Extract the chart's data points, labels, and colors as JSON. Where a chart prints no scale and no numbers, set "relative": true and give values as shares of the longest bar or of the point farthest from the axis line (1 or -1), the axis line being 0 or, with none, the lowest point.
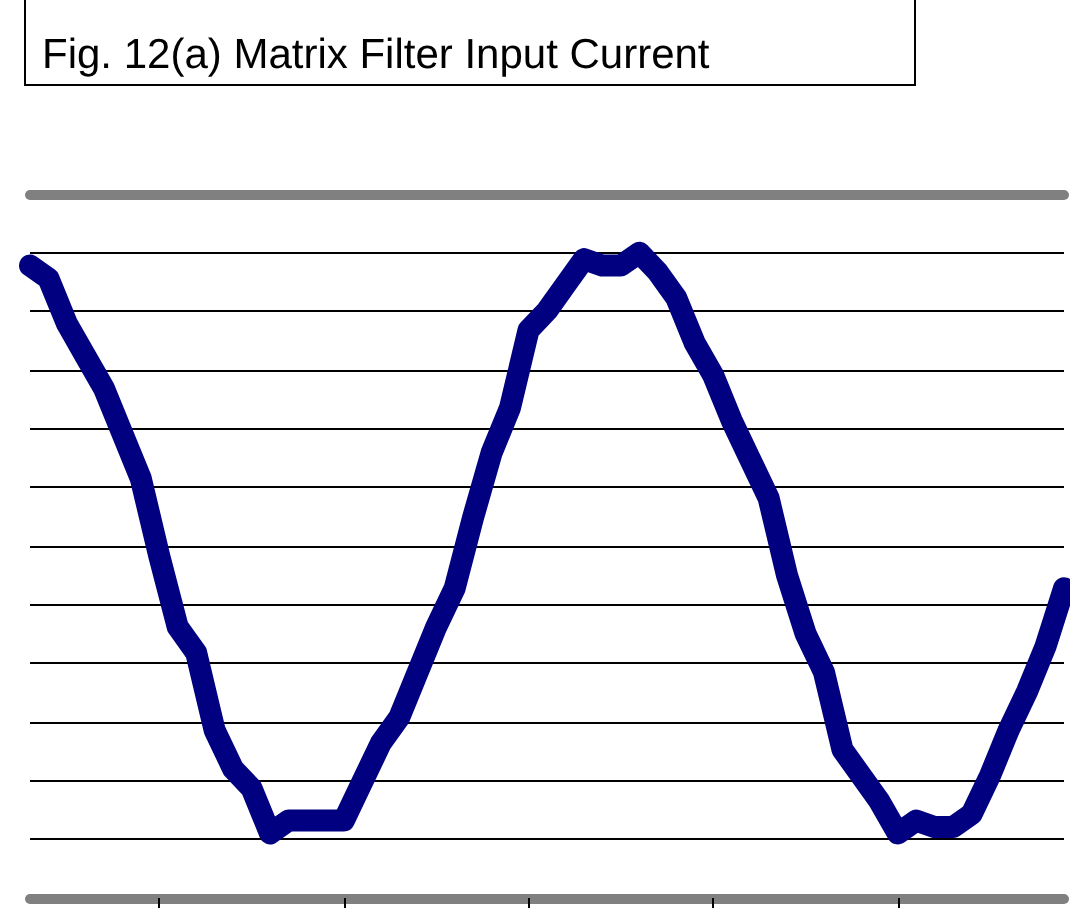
{
  "chart_data": {
    "type": "line",
    "title": "Fig. 12(a) Matrix Filter Input Current",
    "categories": [
      null,
      null,
      null,
      null,
      null,
      null,
      null,
      null,
      null,
      null,
      null,
      null,
      null,
      null,
      null,
      null,
      null,
      null,
      null,
      null,
      null,
      null,
      null,
      null,
      null,
      null,
      null,
      null,
      null,
      null,
      null,
      null,
      null,
      null,
      null,
      null,
      null,
      null,
      null,
      null,
      null,
      null,
      null,
      null,
      null,
      null,
      null,
      null,
      null,
      null,
      null,
      null,
      null,
      null,
      null,
      null,
      null
    ],
    "series": [
      {
        "color": "#000080",
        "values": [
          0.98,
          0.96,
          0.89,
          0.84,
          0.79,
          0.72,
          0.65,
          0.53,
          0.42,
          0.38,
          0.26,
          0.2,
          0.17,
          0.1,
          0.12,
          0.12,
          0.12,
          0.12,
          0.18,
          0.24,
          0.28,
          0.35,
          0.42,
          0.48,
          0.59,
          0.69,
          0.76,
          0.88,
          0.91,
          0.95,
          0.99,
          0.98,
          0.98,
          1.0,
          0.97,
          0.93,
          0.86,
          0.81,
          0.74,
          0.68,
          0.62,
          0.5,
          0.41,
          0.35,
          0.23,
          0.19,
          0.15,
          0.1,
          0.12,
          0.11,
          0.11,
          0.13,
          0.19,
          0.26,
          0.32,
          0.39,
          0.48
        ]
      }
    ],
    "relative": true,
    "grid": "y"
  }
}
